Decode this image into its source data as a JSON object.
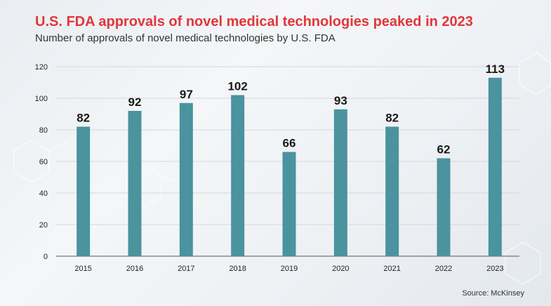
{
  "title": "U.S. FDA approvals of novel medical technologies peaked in 2023",
  "subtitle": "Number of approvals of novel medical technologies by U.S. FDA",
  "source": "Source: McKinsey",
  "colors": {
    "bar": "#4a939f",
    "title": "#e0373a",
    "grid": "#c9cfd4"
  },
  "chart_data": {
    "type": "bar",
    "categories": [
      "2015",
      "2016",
      "2017",
      "2018",
      "2019",
      "2020",
      "2021",
      "2022",
      "2023"
    ],
    "values": [
      82,
      92,
      97,
      102,
      66,
      93,
      82,
      62,
      113
    ],
    "title": "U.S. FDA approvals of novel medical technologies peaked in 2023",
    "subtitle": "Number of approvals of novel medical technologies by U.S. FDA",
    "xlabel": "",
    "ylabel": "",
    "ylim": [
      0,
      120
    ],
    "yticks": [
      0,
      20,
      40,
      60,
      80,
      100,
      120
    ],
    "grid": true,
    "legend": "none"
  }
}
